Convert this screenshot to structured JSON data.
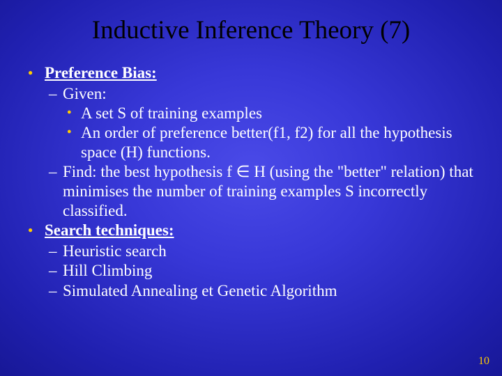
{
  "title": "Inductive Inference Theory (7)",
  "b1": {
    "heading": "Preference Bias:",
    "given": "Given:",
    "g1": " A set S of training examples",
    "g2": "An order of preference better(f1, f2) for all the hypothesis space (H) functions.",
    "find": "Find: the best hypothesis f ∈ H (using the \"better\" relation) that minimises the number of training examples S incorrectly classified."
  },
  "b2": {
    "heading": "Search techniques:",
    "s1": "Heuristic search",
    "s2": "Hill Climbing",
    "s3": "Simulated Annealing et Genetic Algorithm"
  },
  "pageNumber": "10",
  "colors": {
    "title": "#000000",
    "body": "#ffffff",
    "bullet": "#ffcc00",
    "pagenum": "#ffcc00"
  },
  "fonts": {
    "title_size": 37,
    "body_size": 23,
    "family": "Times New Roman"
  }
}
